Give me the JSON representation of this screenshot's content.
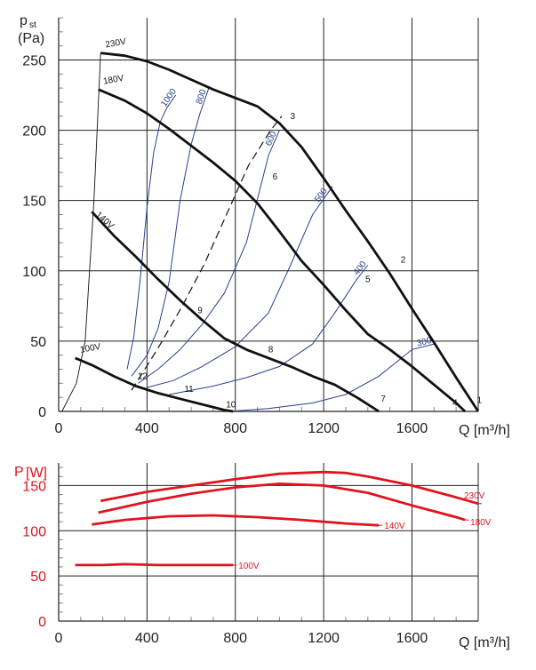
{
  "colors": {
    "black": "#111111",
    "blue": "#2a3f8f",
    "red": "#e0141e",
    "grid": "#222222",
    "minor": "#888888"
  },
  "chart_data": [
    {
      "type": "line",
      "title": "",
      "ylabel_main": "p",
      "ylabel_sub": "st",
      "ylabel_unit": "(Pa)",
      "xlabel": "Q [m³/h]",
      "xlim": [
        0,
        1900
      ],
      "ylim": [
        0,
        280
      ],
      "xticks": [
        0,
        400,
        800,
        1200,
        1600
      ],
      "xtick_labels": [
        "0",
        "400",
        "800",
        "1200",
        "1600"
      ],
      "yticks": [
        0,
        50,
        100,
        150,
        200,
        250
      ],
      "ytick_labels": [
        "0",
        "50",
        "100",
        "150",
        "200",
        "250"
      ],
      "voltage_curves": [
        {
          "name": "230V",
          "x": [
            190,
            300,
            400,
            500,
            600,
            700,
            800,
            900,
            1000,
            1100,
            1200,
            1300,
            1400,
            1500,
            1600,
            1700,
            1800,
            1900
          ],
          "y": [
            255,
            253,
            249,
            243,
            236,
            229,
            223,
            217,
            205,
            188,
            166,
            143,
            121,
            98,
            73,
            49,
            24,
            0
          ]
        },
        {
          "name": "180V",
          "x": [
            180,
            300,
            400,
            500,
            600,
            700,
            800,
            900,
            1000,
            1100,
            1200,
            1300,
            1400,
            1500,
            1600,
            1700,
            1800,
            1840
          ],
          "y": [
            229,
            221,
            212,
            201,
            189,
            177,
            164,
            148,
            128,
            107,
            90,
            72,
            55,
            44,
            32,
            19,
            6,
            0
          ]
        },
        {
          "name": "140V",
          "x": [
            150,
            250,
            350,
            450,
            550,
            650,
            750,
            850,
            950,
            1050,
            1150,
            1250,
            1350,
            1400,
            1450
          ],
          "y": [
            142,
            125,
            110,
            94,
            79,
            65,
            52,
            44,
            38,
            32,
            25,
            19,
            10,
            5,
            0
          ]
        },
        {
          "name": "100V",
          "x": [
            75,
            150,
            250,
            350,
            450,
            550,
            650,
            750,
            790
          ],
          "y": [
            38,
            33,
            25,
            18,
            13,
            9,
            5,
            1,
            0
          ]
        }
      ],
      "rpm_curves": [
        {
          "label": "1000",
          "x": [
            310,
            340,
            370,
            400,
            430,
            460,
            490,
            530
          ],
          "y": [
            30,
            53,
            95,
            145,
            184,
            206,
            216,
            225
          ]
        },
        {
          "label": "800",
          "x": [
            330,
            400,
            450,
            500,
            550,
            600,
            640,
            680
          ],
          "y": [
            25,
            40,
            59,
            92,
            150,
            190,
            212,
            230
          ]
        },
        {
          "label": "600",
          "x": [
            360,
            450,
            550,
            650,
            750,
            850,
            950,
            1000
          ],
          "y": [
            20,
            30,
            44,
            62,
            84,
            120,
            182,
            200
          ]
        },
        {
          "label": "500",
          "x": [
            400,
            520,
            650,
            800,
            950,
            1050,
            1150,
            1240
          ],
          "y": [
            17,
            22,
            32,
            46,
            70,
            104,
            140,
            160
          ]
        },
        {
          "label": "400",
          "x": [
            500,
            700,
            850,
            1000,
            1150,
            1250,
            1350,
            1400
          ],
          "y": [
            12,
            18,
            24,
            32,
            48,
            70,
            94,
            104
          ]
        },
        {
          "label": "300",
          "x": [
            770,
            950,
            1150,
            1300,
            1450,
            1600,
            1700
          ],
          "y": [
            0,
            2,
            6,
            12,
            25,
            44,
            48
          ]
        }
      ],
      "system_curves": [
        {
          "style": "solid",
          "x": [
            15,
            80,
            120,
            160,
            190
          ],
          "y": [
            0,
            20,
            50,
            150,
            255
          ]
        },
        {
          "style": "dashed",
          "x": [
            330,
            450,
            560,
            660,
            760,
            860,
            960,
            1010
          ],
          "y": [
            15,
            45,
            75,
            105,
            140,
            175,
            200,
            210
          ]
        }
      ],
      "point_labels": [
        {
          "text": "1",
          "x": 1905,
          "y": 6
        },
        {
          "text": "2",
          "x": 1560,
          "y": 106
        },
        {
          "text": "3",
          "x": 1060,
          "y": 208
        },
        {
          "text": "4",
          "x": 1795,
          "y": 4
        },
        {
          "text": "5",
          "x": 1400,
          "y": 92
        },
        {
          "text": "6",
          "x": 980,
          "y": 165
        },
        {
          "text": "7",
          "x": 1470,
          "y": 7
        },
        {
          "text": "8",
          "x": 960,
          "y": 42
        },
        {
          "text": "9",
          "x": 640,
          "y": 70
        },
        {
          "text": "10",
          "x": 780,
          "y": 3
        },
        {
          "text": "11",
          "x": 590,
          "y": 14
        },
        {
          "text": "12",
          "x": 380,
          "y": 23
        }
      ]
    },
    {
      "type": "line",
      "title": "",
      "ylabel_main": "P",
      "ylabel_unit": "[W]",
      "xlabel": "Q [m³/h]",
      "xlim": [
        0,
        1900
      ],
      "ylim": [
        0,
        175
      ],
      "xticks": [
        0,
        400,
        800,
        1200,
        1600
      ],
      "xtick_labels": [
        "0",
        "400",
        "800",
        "1200",
        "1600"
      ],
      "yticks": [
        0,
        50,
        100,
        150
      ],
      "ytick_labels": [
        "0",
        "50",
        "100",
        "150"
      ],
      "series": [
        {
          "name": "230V",
          "x": [
            190,
            400,
            600,
            800,
            1000,
            1100,
            1200,
            1300,
            1400,
            1600,
            1800,
            1900
          ],
          "y": [
            133,
            143,
            150,
            157,
            163,
            164,
            165,
            164,
            160,
            150,
            137,
            130
          ]
        },
        {
          "name": "180V",
          "x": [
            180,
            400,
            600,
            800,
            1000,
            1200,
            1400,
            1600,
            1800,
            1840
          ],
          "y": [
            120,
            132,
            141,
            148,
            152,
            150,
            142,
            128,
            115,
            112
          ]
        },
        {
          "name": "140V",
          "x": [
            150,
            300,
            500,
            700,
            900,
            1100,
            1300,
            1450
          ],
          "y": [
            107,
            112,
            116,
            117,
            115,
            112,
            108,
            106
          ]
        },
        {
          "name": "100V",
          "x": [
            75,
            200,
            300,
            450,
            600,
            790
          ],
          "y": [
            62,
            62,
            63,
            62,
            62,
            62
          ]
        }
      ]
    }
  ]
}
